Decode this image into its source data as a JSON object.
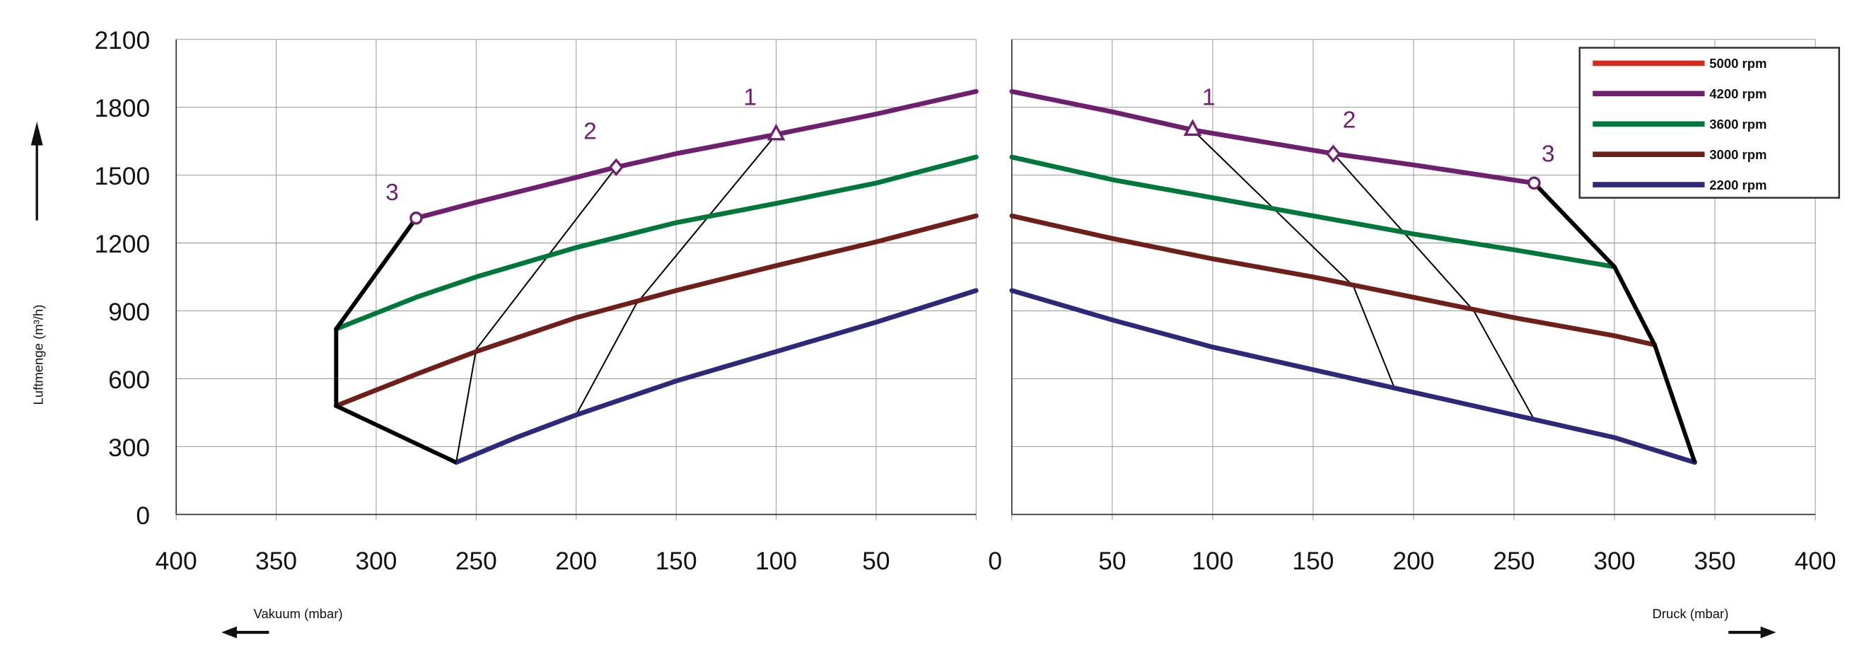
{
  "chart_data": {
    "type": "line",
    "ylabel": "Luftmenge (m³/h)",
    "ylim": [
      0,
      2100
    ],
    "yticks": [
      0,
      300,
      600,
      900,
      1200,
      1500,
      1800,
      2100
    ],
    "legend_position": "top-right",
    "legend": [
      {
        "name": "5000 rpm",
        "color": "#d42a20"
      },
      {
        "name": "4200 rpm",
        "color": "#6e1f6e"
      },
      {
        "name": "3600 rpm",
        "color": "#00773a"
      },
      {
        "name": "3000 rpm",
        "color": "#6e1f1a"
      },
      {
        "name": "2200 rpm",
        "color": "#2e2878"
      }
    ],
    "panels": [
      {
        "name": "vacuum",
        "xlabel": "Vakuum (mbar)",
        "xlim": [
          400,
          0
        ],
        "xticks": [
          "400",
          "350",
          "300",
          "250",
          "200",
          "150",
          "100",
          "50"
        ],
        "series": [
          {
            "name": "4200 rpm",
            "color": "#6e1f6e",
            "points": [
              [
                280,
                1310
              ],
              [
                250,
                1380
              ],
              [
                200,
                1490
              ],
              [
                180,
                1535
              ],
              [
                150,
                1595
              ],
              [
                100,
                1680
              ],
              [
                50,
                1770
              ],
              [
                0,
                1870
              ]
            ]
          },
          {
            "name": "3600 rpm",
            "color": "#00773a",
            "points": [
              [
                320,
                820
              ],
              [
                280,
                960
              ],
              [
                250,
                1050
              ],
              [
                200,
                1180
              ],
              [
                150,
                1290
              ],
              [
                100,
                1375
              ],
              [
                50,
                1465
              ],
              [
                0,
                1580
              ]
            ]
          },
          {
            "name": "3000 rpm",
            "color": "#6e1f1a",
            "points": [
              [
                320,
                480
              ],
              [
                280,
                620
              ],
              [
                250,
                720
              ],
              [
                200,
                870
              ],
              [
                150,
                990
              ],
              [
                100,
                1100
              ],
              [
                50,
                1205
              ],
              [
                0,
                1320
              ]
            ]
          },
          {
            "name": "2200 rpm",
            "color": "#2e2878",
            "points": [
              [
                260,
                230
              ],
              [
                230,
                340
              ],
              [
                200,
                440
              ],
              [
                150,
                590
              ],
              [
                100,
                720
              ],
              [
                50,
                850
              ],
              [
                0,
                990
              ]
            ]
          }
        ],
        "envelope": [
          [
            280,
            1310
          ],
          [
            320,
            820
          ],
          [
            320,
            480
          ],
          [
            260,
            230
          ]
        ],
        "guide_lines": [
          [
            [
              180,
              1535
            ],
            [
              250,
              730
            ],
            [
              260,
              230
            ]
          ],
          [
            [
              100,
              1680
            ],
            [
              170,
              930
            ],
            [
              200,
              440
            ]
          ]
        ],
        "markers": [
          {
            "label": "1",
            "shape": "triangle",
            "point": [
              100,
              1680
            ],
            "label_at": [
              113,
              1810
            ]
          },
          {
            "label": "2",
            "shape": "diamond",
            "point": [
              180,
              1535
            ],
            "label_at": [
              193,
              1660
            ]
          },
          {
            "label": "3",
            "shape": "circle",
            "point": [
              280,
              1310
            ],
            "label_at": [
              292,
              1390
            ]
          }
        ]
      },
      {
        "name": "pressure",
        "xlabel": "Druck (mbar)",
        "xlim": [
          0,
          400
        ],
        "xticks": [
          "0",
          "50",
          "100",
          "150",
          "200",
          "250",
          "300",
          "350",
          "400"
        ],
        "series": [
          {
            "name": "4200 rpm",
            "color": "#6e1f6e",
            "points": [
              [
                0,
                1870
              ],
              [
                50,
                1780
              ],
              [
                90,
                1700
              ],
              [
                150,
                1610
              ],
              [
                160,
                1595
              ],
              [
                200,
                1545
              ],
              [
                260,
                1465
              ]
            ]
          },
          {
            "name": "3600 rpm",
            "color": "#00773a",
            "points": [
              [
                0,
                1580
              ],
              [
                50,
                1480
              ],
              [
                100,
                1400
              ],
              [
                150,
                1320
              ],
              [
                200,
                1240
              ],
              [
                250,
                1170
              ],
              [
                300,
                1095
              ]
            ]
          },
          {
            "name": "3000 rpm",
            "color": "#6e1f1a",
            "points": [
              [
                0,
                1320
              ],
              [
                50,
                1220
              ],
              [
                100,
                1130
              ],
              [
                150,
                1050
              ],
              [
                200,
                960
              ],
              [
                250,
                870
              ],
              [
                300,
                790
              ],
              [
                320,
                750
              ]
            ]
          },
          {
            "name": "2200 rpm",
            "color": "#2e2878",
            "points": [
              [
                0,
                990
              ],
              [
                50,
                860
              ],
              [
                100,
                740
              ],
              [
                150,
                640
              ],
              [
                200,
                540
              ],
              [
                250,
                440
              ],
              [
                300,
                340
              ],
              [
                340,
                230
              ]
            ]
          }
        ],
        "envelope": [
          [
            260,
            1465
          ],
          [
            300,
            1095
          ],
          [
            320,
            750
          ],
          [
            340,
            230
          ]
        ],
        "guide_lines": [
          [
            [
              90,
              1700
            ],
            [
              170,
              1010
            ],
            [
              190,
              570
            ]
          ],
          [
            [
              160,
              1595
            ],
            [
              230,
              900
            ],
            [
              260,
              420
            ]
          ]
        ],
        "markers": [
          {
            "label": "1",
            "shape": "triangle",
            "point": [
              90,
              1700
            ],
            "label_at": [
              98,
              1810
            ]
          },
          {
            "label": "2",
            "shape": "diamond",
            "point": [
              160,
              1595
            ],
            "label_at": [
              168,
              1710
            ]
          },
          {
            "label": "3",
            "shape": "circle",
            "point": [
              260,
              1465
            ],
            "label_at": [
              267,
              1560
            ]
          }
        ]
      }
    ]
  }
}
